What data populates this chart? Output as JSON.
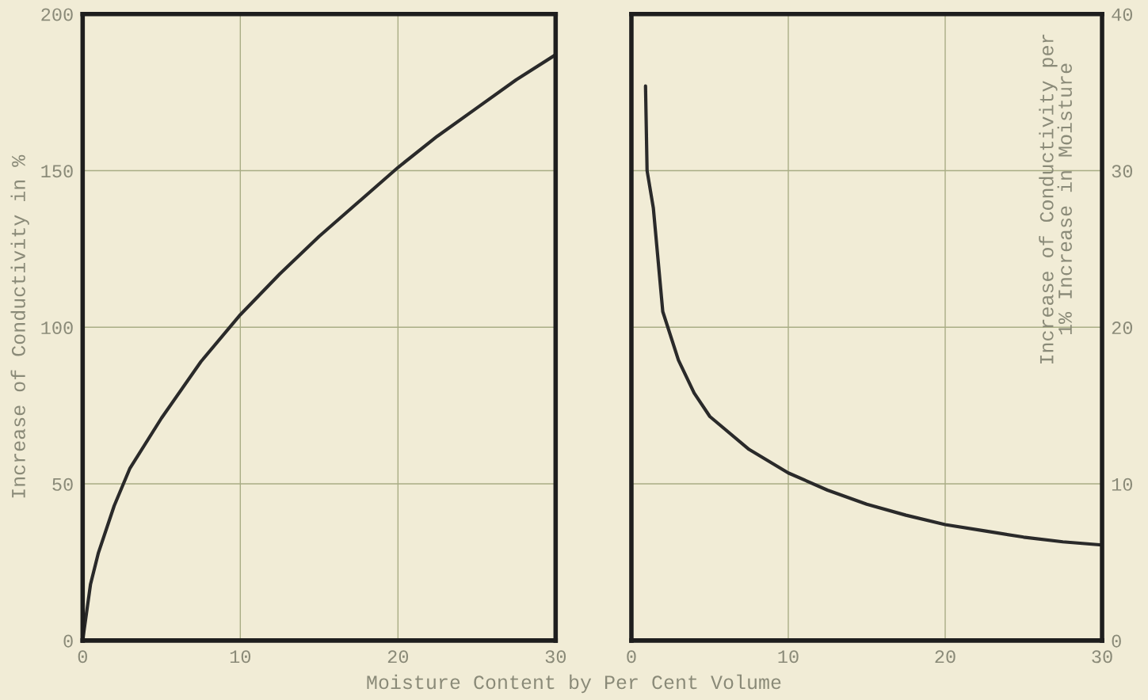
{
  "chart_data": [
    {
      "type": "line",
      "ylabel": "Increase of Conductivity in %",
      "xlabel": "Moisture Content by Per Cent Volume",
      "x": [
        0,
        0.5,
        1,
        2,
        3,
        5,
        7.5,
        10,
        12.5,
        15,
        17.5,
        20,
        22.5,
        25,
        27.5,
        30
      ],
      "series": [
        {
          "color": "#2a2a2a",
          "values": [
            0,
            18,
            28,
            43,
            55,
            71,
            89,
            104,
            117,
            129,
            140,
            151,
            161,
            170,
            179,
            187
          ]
        }
      ],
      "xlim": [
        0,
        30
      ],
      "xticks": [
        0,
        10,
        20,
        30
      ],
      "ylim": [
        0,
        200
      ],
      "yticks": [
        0,
        50,
        100,
        150,
        200
      ],
      "grid": true,
      "line_style": "solid",
      "marker": "none"
    },
    {
      "type": "line",
      "ylabel": "Increase of Conductivity per\n1% Increase in Moisture",
      "x": [
        0.9,
        1,
        1.4,
        2,
        3,
        4,
        5,
        7.5,
        10,
        12.5,
        15,
        17.5,
        20,
        22.5,
        25,
        27.5,
        30
      ],
      "series": [
        {
          "axis": "y2",
          "color": "#2a2a2a",
          "values": [
            35.4,
            30,
            27.6,
            21,
            17.9,
            15.8,
            14.3,
            12.2,
            10.7,
            9.6,
            8.7,
            8,
            7.4,
            7,
            6.6,
            6.3,
            6.1
          ]
        }
      ],
      "xlim": [
        0,
        30
      ],
      "xticks": [
        0,
        10,
        20,
        30
      ],
      "y2lim": [
        0,
        40
      ],
      "y2ticks": [
        0,
        10,
        20,
        30,
        40
      ],
      "grid": true,
      "line_style": "solid",
      "marker": "none"
    }
  ]
}
